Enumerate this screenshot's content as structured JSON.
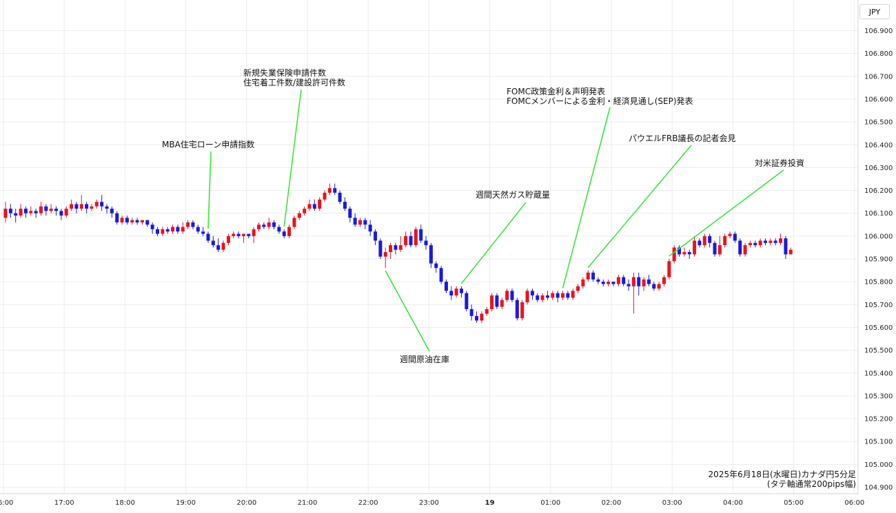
{
  "currency_selector": "JPY",
  "caption": {
    "line1": "2025年6月18日(水曜日)カナダ円5分足",
    "line2": "(タテ軸通常200pips幅)"
  },
  "colors": {
    "up": "#e8141c",
    "down": "#1a1adc",
    "annotation_line": "#39e639"
  },
  "chart_data": {
    "type": "candlestick",
    "title": "",
    "interval": "5分",
    "ylim": [
      104.9,
      106.95
    ],
    "y_ticks": [
      "104.900",
      "105.000",
      "105.100",
      "105.200",
      "105.300",
      "105.400",
      "105.500",
      "105.600",
      "105.700",
      "105.800",
      "105.900",
      "106.000",
      "106.100",
      "106.200",
      "106.300",
      "106.400",
      "106.500",
      "106.600",
      "106.700",
      "106.800",
      "106.900"
    ],
    "x_ticks": [
      "16:00",
      "17:00",
      "18:00",
      "19:00",
      "20:00",
      "21:00",
      "22:00",
      "23:00",
      "19",
      "01:00",
      "02:00",
      "03:00",
      "04:00",
      "05:00",
      "06:00"
    ],
    "grid": true,
    "candles": [
      [
        106.08,
        106.12,
        106.15,
        106.06
      ],
      [
        106.12,
        106.1,
        106.14,
        106.08
      ],
      [
        106.1,
        106.09,
        106.12,
        106.06
      ],
      [
        106.09,
        106.12,
        106.14,
        106.08
      ],
      [
        106.12,
        106.1,
        106.13,
        106.08
      ],
      [
        106.1,
        106.11,
        106.13,
        106.09
      ],
      [
        106.11,
        106.1,
        106.12,
        106.08
      ],
      [
        106.1,
        106.13,
        106.15,
        106.09
      ],
      [
        106.13,
        106.11,
        106.14,
        106.09
      ],
      [
        106.11,
        106.12,
        106.14,
        106.1
      ],
      [
        106.12,
        106.11,
        106.13,
        106.09
      ],
      [
        106.11,
        106.09,
        106.12,
        106.07
      ],
      [
        106.09,
        106.12,
        106.13,
        106.08
      ],
      [
        106.12,
        106.14,
        106.16,
        106.11
      ],
      [
        106.14,
        106.12,
        106.15,
        106.1
      ],
      [
        106.12,
        106.14,
        106.18,
        106.11
      ],
      [
        106.14,
        106.12,
        106.15,
        106.1
      ],
      [
        106.12,
        106.13,
        106.14,
        106.11
      ],
      [
        106.13,
        106.15,
        106.16,
        106.12
      ],
      [
        106.15,
        106.13,
        106.18,
        106.11
      ],
      [
        106.13,
        106.12,
        106.14,
        106.1
      ],
      [
        106.12,
        106.1,
        106.13,
        106.08
      ],
      [
        106.1,
        106.06,
        106.11,
        106.05
      ],
      [
        106.06,
        106.08,
        106.09,
        106.05
      ],
      [
        106.08,
        106.06,
        106.09,
        106.05
      ],
      [
        106.06,
        106.07,
        106.08,
        106.05
      ],
      [
        106.07,
        106.06,
        106.08,
        106.05
      ],
      [
        106.06,
        106.07,
        106.07,
        106.05
      ],
      [
        106.07,
        106.05,
        106.07,
        106.04
      ],
      [
        106.05,
        106.03,
        106.06,
        106.01
      ],
      [
        106.03,
        106.01,
        106.04,
        106.0
      ],
      [
        106.01,
        106.03,
        106.04,
        106.0
      ],
      [
        106.03,
        106.02,
        106.04,
        106.01
      ],
      [
        106.02,
        106.04,
        106.05,
        106.01
      ],
      [
        106.04,
        106.02,
        106.05,
        106.01
      ],
      [
        106.02,
        106.04,
        106.06,
        106.01
      ],
      [
        106.04,
        106.06,
        106.07,
        106.03
      ],
      [
        106.06,
        106.04,
        106.07,
        106.03
      ],
      [
        106.04,
        106.02,
        106.05,
        106.01
      ],
      [
        106.02,
        106.01,
        106.04,
        106.0
      ],
      [
        106.01,
        105.98,
        106.02,
        105.97
      ],
      [
        105.98,
        105.96,
        106.0,
        105.95
      ],
      [
        105.96,
        105.94,
        105.99,
        105.93
      ],
      [
        105.94,
        105.97,
        105.98,
        105.93
      ],
      [
        105.97,
        106.0,
        106.01,
        105.96
      ],
      [
        106.0,
        106.01,
        106.02,
        105.99
      ],
      [
        106.01,
        106.0,
        106.02,
        105.99
      ],
      [
        106.0,
        106.01,
        106.01,
        105.97
      ],
      [
        106.01,
        106.0,
        106.01,
        105.99
      ],
      [
        106.0,
        106.03,
        106.04,
        105.97
      ],
      [
        106.03,
        106.05,
        106.06,
        106.02
      ],
      [
        106.05,
        106.04,
        106.06,
        106.03
      ],
      [
        106.04,
        106.06,
        106.08,
        106.03
      ],
      [
        106.06,
        106.04,
        106.07,
        106.03
      ],
      [
        106.04,
        106.02,
        106.05,
        106.01
      ],
      [
        106.02,
        106.0,
        106.03,
        105.99
      ],
      [
        106.0,
        106.04,
        106.05,
        105.99
      ],
      [
        106.04,
        106.08,
        106.09,
        106.03
      ],
      [
        106.08,
        106.1,
        106.11,
        106.07
      ],
      [
        106.1,
        106.12,
        106.13,
        106.09
      ],
      [
        106.12,
        106.14,
        106.16,
        106.11
      ],
      [
        106.14,
        106.12,
        106.16,
        106.11
      ],
      [
        106.12,
        106.16,
        106.17,
        106.11
      ],
      [
        106.16,
        106.19,
        106.2,
        106.15
      ],
      [
        106.19,
        106.21,
        106.23,
        106.18
      ],
      [
        106.21,
        106.19,
        106.23,
        106.18
      ],
      [
        106.19,
        106.15,
        106.2,
        106.14
      ],
      [
        106.15,
        106.12,
        106.17,
        106.11
      ],
      [
        106.12,
        106.08,
        106.13,
        106.06
      ],
      [
        106.08,
        106.05,
        106.1,
        106.04
      ],
      [
        106.05,
        106.07,
        106.08,
        106.04
      ],
      [
        106.07,
        106.05,
        106.08,
        106.03
      ],
      [
        106.05,
        106.02,
        106.07,
        106.0
      ],
      [
        106.02,
        105.98,
        106.03,
        105.96
      ],
      [
        105.98,
        105.91,
        105.99,
        105.9
      ],
      [
        105.91,
        105.93,
        105.95,
        105.86
      ],
      [
        105.93,
        105.96,
        105.97,
        105.9
      ],
      [
        105.96,
        105.94,
        105.97,
        105.92
      ],
      [
        105.94,
        105.96,
        106.0,
        105.93
      ],
      [
        105.96,
        106.0,
        106.02,
        105.95
      ],
      [
        106.0,
        105.96,
        106.02,
        105.95
      ],
      [
        105.96,
        106.03,
        106.04,
        105.95
      ],
      [
        106.03,
        105.98,
        106.05,
        105.97
      ],
      [
        105.98,
        105.96,
        106.0,
        105.94
      ],
      [
        105.96,
        105.88,
        105.97,
        105.86
      ],
      [
        105.88,
        105.86,
        105.89,
        105.84
      ],
      [
        105.86,
        105.8,
        105.87,
        105.79
      ],
      [
        105.8,
        105.76,
        105.81,
        105.75
      ],
      [
        105.76,
        105.74,
        105.78,
        105.72
      ],
      [
        105.74,
        105.77,
        105.78,
        105.73
      ],
      [
        105.77,
        105.75,
        105.78,
        105.73
      ],
      [
        105.75,
        105.68,
        105.76,
        105.67
      ],
      [
        105.68,
        105.65,
        105.7,
        105.63
      ],
      [
        105.65,
        105.63,
        105.67,
        105.62
      ],
      [
        105.63,
        105.66,
        105.67,
        105.62
      ],
      [
        105.66,
        105.68,
        105.69,
        105.65
      ],
      [
        105.68,
        105.74,
        105.75,
        105.67
      ],
      [
        105.74,
        105.69,
        105.75,
        105.68
      ],
      [
        105.69,
        105.72,
        105.73,
        105.68
      ],
      [
        105.72,
        105.76,
        105.77,
        105.71
      ],
      [
        105.76,
        105.72,
        105.77,
        105.71
      ],
      [
        105.72,
        105.64,
        105.73,
        105.63
      ],
      [
        105.64,
        105.71,
        105.72,
        105.63
      ],
      [
        105.71,
        105.76,
        105.77,
        105.7
      ],
      [
        105.76,
        105.74,
        105.77,
        105.72
      ],
      [
        105.74,
        105.72,
        105.75,
        105.71
      ],
      [
        105.72,
        105.74,
        105.75,
        105.71
      ],
      [
        105.74,
        105.73,
        105.76,
        105.72
      ],
      [
        105.73,
        105.75,
        105.76,
        105.72
      ],
      [
        105.75,
        105.73,
        105.76,
        105.71
      ],
      [
        105.73,
        105.75,
        105.76,
        105.72
      ],
      [
        105.75,
        105.73,
        105.76,
        105.72
      ],
      [
        105.73,
        105.76,
        105.77,
        105.72
      ],
      [
        105.76,
        105.78,
        105.79,
        105.75
      ],
      [
        105.78,
        105.81,
        105.82,
        105.77
      ],
      [
        105.81,
        105.84,
        105.85,
        105.8
      ],
      [
        105.84,
        105.81,
        105.85,
        105.8
      ],
      [
        105.81,
        105.8,
        105.82,
        105.79
      ],
      [
        105.8,
        105.79,
        105.81,
        105.78
      ],
      [
        105.79,
        105.8,
        105.81,
        105.78
      ],
      [
        105.8,
        105.79,
        105.8,
        105.78
      ],
      [
        105.79,
        105.82,
        105.83,
        105.78
      ],
      [
        105.82,
        105.79,
        105.83,
        105.78
      ],
      [
        105.79,
        105.78,
        105.81,
        105.76
      ],
      [
        105.78,
        105.82,
        105.84,
        105.66
      ],
      [
        105.82,
        105.78,
        105.84,
        105.74
      ],
      [
        105.78,
        105.81,
        105.82,
        105.76
      ],
      [
        105.81,
        105.79,
        105.83,
        105.78
      ],
      [
        105.79,
        105.77,
        105.8,
        105.76
      ],
      [
        105.77,
        105.79,
        105.8,
        105.76
      ],
      [
        105.79,
        105.82,
        105.83,
        105.78
      ],
      [
        105.82,
        105.89,
        105.9,
        105.81
      ],
      [
        105.89,
        105.95,
        105.96,
        105.88
      ],
      [
        105.95,
        105.92,
        105.96,
        105.91
      ],
      [
        105.92,
        105.93,
        105.95,
        105.91
      ],
      [
        105.93,
        105.92,
        105.94,
        105.9
      ],
      [
        105.92,
        105.98,
        106.0,
        105.91
      ],
      [
        105.98,
        105.96,
        105.99,
        105.95
      ],
      [
        105.96,
        106.0,
        106.01,
        105.95
      ],
      [
        106.0,
        105.97,
        106.01,
        105.95
      ],
      [
        105.97,
        105.92,
        105.98,
        105.91
      ],
      [
        105.92,
        105.96,
        106.0,
        105.91
      ],
      [
        105.96,
        106.0,
        106.01,
        105.95
      ],
      [
        106.0,
        106.01,
        106.02,
        105.99
      ],
      [
        106.01,
        105.98,
        106.02,
        105.97
      ],
      [
        105.98,
        105.92,
        105.99,
        105.91
      ],
      [
        105.92,
        105.96,
        105.97,
        105.91
      ],
      [
        105.96,
        105.97,
        105.98,
        105.95
      ],
      [
        105.97,
        105.96,
        105.98,
        105.95
      ],
      [
        105.96,
        105.98,
        105.99,
        105.95
      ],
      [
        105.98,
        105.97,
        105.99,
        105.96
      ],
      [
        105.97,
        105.98,
        105.99,
        105.96
      ],
      [
        105.98,
        105.97,
        105.99,
        105.96
      ],
      [
        105.97,
        105.99,
        106.01,
        105.96
      ],
      [
        105.99,
        105.92,
        106.0,
        105.9
      ],
      [
        105.92,
        105.94,
        105.95,
        105.92
      ]
    ],
    "annotations": [
      {
        "lines": [
          "MBA住宅ローン申請指数"
        ],
        "candle": 40
      },
      {
        "lines": [
          "新規失業保険申請件数",
          "住宅着工件数/建設許可件数"
        ],
        "candle": 55
      },
      {
        "lines": [
          "週間原油在庫"
        ],
        "candle": 75
      },
      {
        "lines": [
          "週間天然ガス貯蔵量"
        ],
        "candle": 90
      },
      {
        "lines": [
          "FOMC政策金利＆声明発表",
          "FOMCメンバーによる金利・経済見通し(SEP)発表"
        ],
        "candle": 110
      },
      {
        "lines": [
          "パウエルFRB議長の記者会見"
        ],
        "candle": 115
      },
      {
        "lines": [
          "対米証券投資"
        ],
        "candle": 131
      }
    ]
  }
}
